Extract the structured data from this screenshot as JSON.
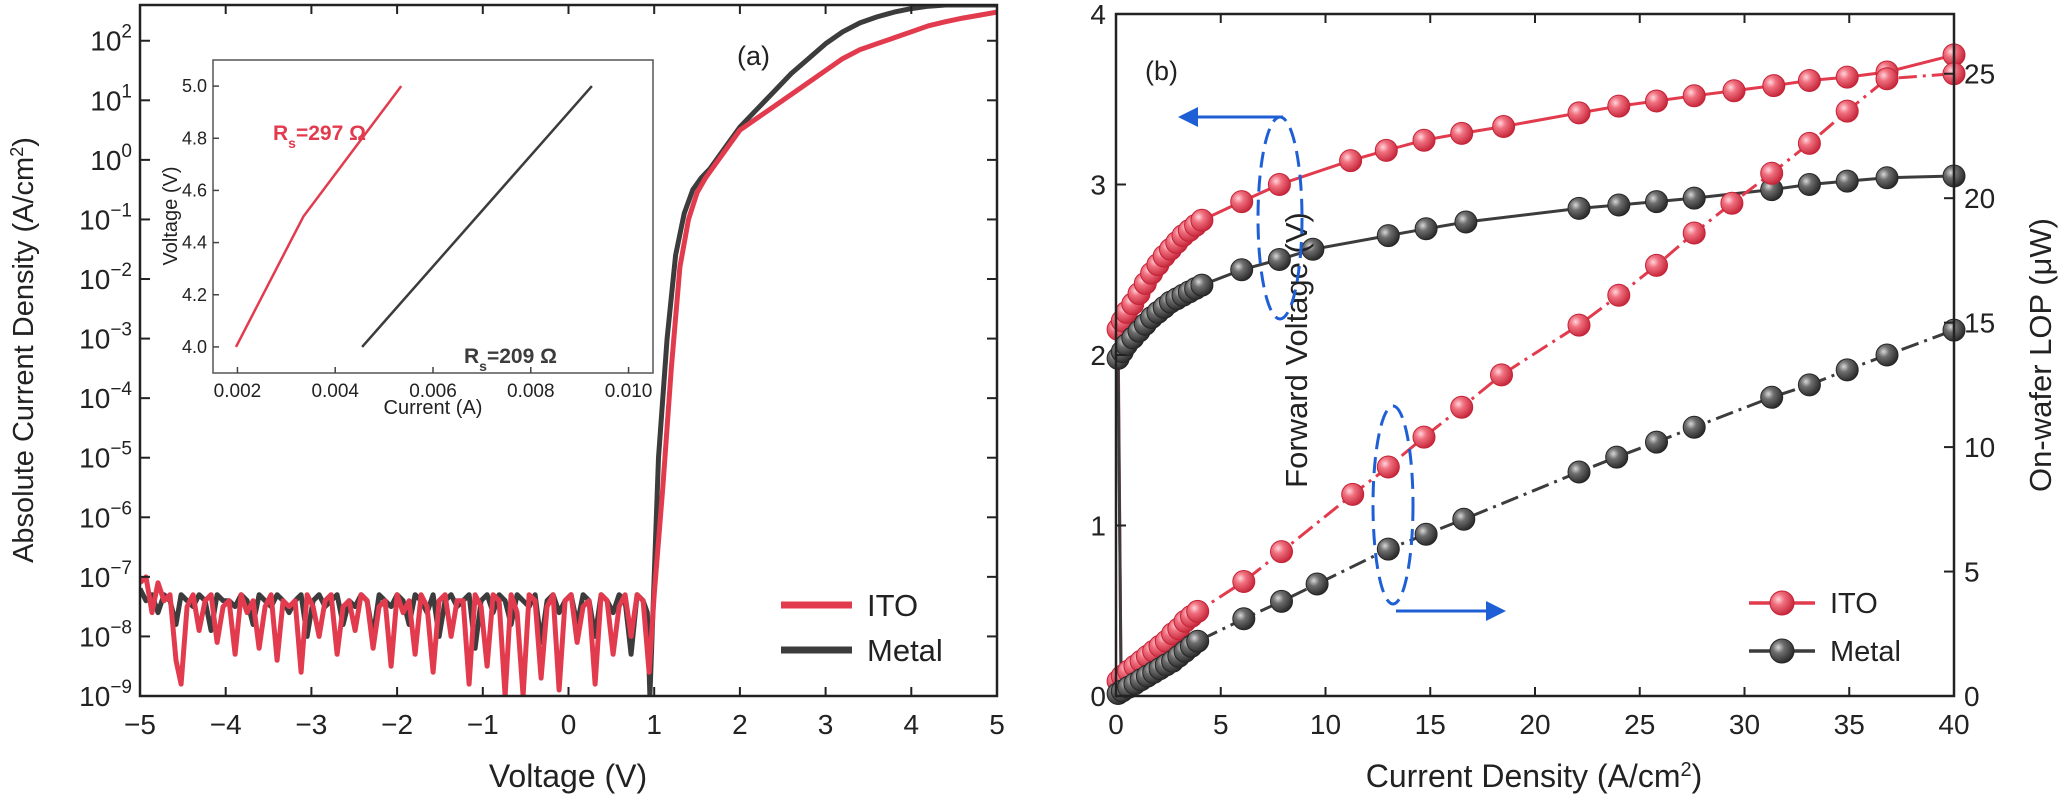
{
  "colors": {
    "ito": "#e23b4e",
    "metal": "#3c3c3c",
    "annotation": "#1f5fd6"
  },
  "chart_data": [
    {
      "panel_label": "(a)",
      "type": "line",
      "xlabel": "Voltage (V)",
      "ylabel_main": "Absolute Current Density (A/cm",
      "ylabel_sup": "2",
      "ylabel_tail": ")",
      "xlim": [
        -5,
        5
      ],
      "ylim_log10": [
        -9,
        2.6
      ],
      "y_scale": "log",
      "xticks": [
        -5,
        -4,
        -3,
        -2,
        -1,
        0,
        1,
        2,
        3,
        4,
        5
      ],
      "xtick_labels": [
        "−5",
        "−4",
        "−3",
        "−2",
        "−1",
        "0",
        "1",
        "2",
        "3",
        "4",
        "5"
      ],
      "ytick_exponents": [
        -9,
        -8,
        -7,
        -6,
        -5,
        -4,
        -3,
        -2,
        -1,
        0,
        1,
        2
      ],
      "ytick_base": "10",
      "legend_position": "bottom-right",
      "series": [
        {
          "name": "ITO",
          "color_key": "ito",
          "x": [
            -5.0,
            -4.93,
            -4.86,
            -4.79,
            -4.72,
            -4.65,
            -4.58,
            -4.52,
            -4.45,
            -4.38,
            -4.31,
            -4.24,
            -4.17,
            -4.1,
            -4.03,
            -3.96,
            -3.89,
            -3.82,
            -3.75,
            -3.68,
            -3.61,
            -3.54,
            -3.47,
            -3.4,
            -3.33,
            -3.26,
            -3.19,
            -3.12,
            -3.05,
            -2.98,
            -2.91,
            -2.84,
            -2.77,
            -2.7,
            -2.63,
            -2.56,
            -2.49,
            -2.42,
            -2.35,
            -2.28,
            -2.21,
            -2.14,
            -2.07,
            -2.0,
            -1.93,
            -1.86,
            -1.79,
            -1.72,
            -1.65,
            -1.58,
            -1.51,
            -1.44,
            -1.37,
            -1.3,
            -1.23,
            -1.16,
            -1.09,
            -1.02,
            -0.95,
            -0.88,
            -0.81,
            -0.74,
            -0.67,
            -0.6,
            -0.53,
            -0.46,
            -0.39,
            -0.32,
            -0.25,
            -0.18,
            -0.11,
            -0.04,
            0.03,
            0.1,
            0.17,
            0.24,
            0.31,
            0.38,
            0.45,
            0.52,
            0.59,
            0.66,
            0.73,
            0.8,
            0.87,
            0.94,
            1.0,
            1.1,
            1.2,
            1.3,
            1.4,
            1.5,
            1.6,
            1.7,
            1.8,
            1.9,
            2.0,
            2.2,
            2.4,
            2.6,
            2.8,
            3.0,
            3.2,
            3.4,
            3.6,
            3.8,
            4.0,
            4.2,
            4.4,
            4.6,
            4.8,
            5.0
          ],
          "log10_y": [
            -7.1,
            -7.0,
            -7.6,
            -7.1,
            -7.4,
            -7.3,
            -8.4,
            -8.8,
            -7.5,
            -7.3,
            -7.9,
            -7.4,
            -7.3,
            -8.1,
            -7.5,
            -7.4,
            -8.3,
            -7.3,
            -7.6,
            -7.4,
            -8.2,
            -7.5,
            -7.3,
            -8.4,
            -7.4,
            -7.5,
            -7.4,
            -8.6,
            -7.3,
            -7.5,
            -8.0,
            -7.4,
            -7.3,
            -8.3,
            -7.5,
            -7.4,
            -7.9,
            -7.3,
            -7.4,
            -8.2,
            -7.5,
            -7.4,
            -8.5,
            -7.3,
            -7.6,
            -7.4,
            -8.3,
            -7.3,
            -7.5,
            -8.6,
            -7.4,
            -7.3,
            -8.0,
            -7.4,
            -7.4,
            -8.8,
            -7.3,
            -7.5,
            -8.5,
            -7.3,
            -7.4,
            -9.0,
            -7.3,
            -7.6,
            -9.0,
            -7.3,
            -7.4,
            -8.7,
            -7.5,
            -7.3,
            -8.9,
            -7.4,
            -7.3,
            -8.1,
            -7.5,
            -7.4,
            -8.8,
            -7.3,
            -7.4,
            -8.3,
            -7.5,
            -7.3,
            -8.0,
            -7.3,
            -7.4,
            -8.6,
            -7.3,
            -5.5,
            -3.5,
            -1.8,
            -1.0,
            -0.55,
            -0.3,
            -0.1,
            0.1,
            0.3,
            0.5,
            0.7,
            0.9,
            1.1,
            1.3,
            1.5,
            1.7,
            1.85,
            1.95,
            2.05,
            2.15,
            2.25,
            2.32,
            2.38,
            2.43,
            2.48
          ]
        },
        {
          "name": "Metal",
          "color_key": "metal",
          "x": [
            -5.0,
            -4.93,
            -4.86,
            -4.79,
            -4.72,
            -4.65,
            -4.58,
            -4.52,
            -4.45,
            -4.38,
            -4.31,
            -4.24,
            -4.17,
            -4.1,
            -4.03,
            -3.96,
            -3.89,
            -3.82,
            -3.75,
            -3.68,
            -3.61,
            -3.54,
            -3.47,
            -3.4,
            -3.33,
            -3.26,
            -3.19,
            -3.12,
            -3.05,
            -2.98,
            -2.91,
            -2.84,
            -2.77,
            -2.7,
            -2.63,
            -2.56,
            -2.49,
            -2.42,
            -2.35,
            -2.28,
            -2.21,
            -2.14,
            -2.07,
            -2.0,
            -1.93,
            -1.86,
            -1.79,
            -1.72,
            -1.65,
            -1.58,
            -1.51,
            -1.44,
            -1.37,
            -1.3,
            -1.23,
            -1.16,
            -1.09,
            -1.02,
            -0.95,
            -0.88,
            -0.81,
            -0.74,
            -0.67,
            -0.6,
            -0.53,
            -0.46,
            -0.39,
            -0.32,
            -0.25,
            -0.18,
            -0.11,
            -0.04,
            0.03,
            0.1,
            0.17,
            0.24,
            0.31,
            0.38,
            0.45,
            0.52,
            0.59,
            0.66,
            0.73,
            0.8,
            0.87,
            0.92,
            0.95,
            1.05,
            1.15,
            1.25,
            1.35,
            1.45,
            1.55,
            1.65,
            1.75,
            1.85,
            2.0,
            2.2,
            2.4,
            2.6,
            2.8,
            3.0,
            3.2,
            3.4,
            3.6,
            3.8,
            4.0,
            4.2,
            4.4,
            4.6,
            4.8,
            5.0
          ],
          "log10_y": [
            -7.2,
            -7.4,
            -7.3,
            -7.6,
            -7.3,
            -7.4,
            -7.8,
            -7.3,
            -7.4,
            -7.5,
            -7.3,
            -7.4,
            -7.9,
            -7.3,
            -7.4,
            -7.4,
            -7.5,
            -7.3,
            -7.4,
            -7.8,
            -7.3,
            -7.4,
            -7.5,
            -7.3,
            -7.4,
            -7.6,
            -7.4,
            -7.3,
            -8.0,
            -7.4,
            -7.3,
            -7.5,
            -7.4,
            -7.3,
            -7.8,
            -7.4,
            -7.5,
            -7.3,
            -7.4,
            -8.0,
            -7.3,
            -7.4,
            -7.5,
            -7.3,
            -7.4,
            -7.8,
            -7.3,
            -7.4,
            -7.6,
            -7.3,
            -8.0,
            -7.4,
            -7.3,
            -7.5,
            -7.4,
            -7.3,
            -8.2,
            -7.4,
            -7.3,
            -7.6,
            -7.3,
            -7.4,
            -7.8,
            -7.3,
            -7.4,
            -7.5,
            -7.3,
            -8.1,
            -7.4,
            -7.3,
            -7.6,
            -7.4,
            -7.3,
            -7.8,
            -7.3,
            -7.4,
            -8.0,
            -7.3,
            -7.4,
            -7.6,
            -7.3,
            -7.4,
            -8.3,
            -7.3,
            -7.4,
            -7.6,
            -9.0,
            -5.0,
            -3.0,
            -1.6,
            -0.9,
            -0.5,
            -0.3,
            -0.15,
            0.05,
            0.25,
            0.55,
            0.85,
            1.15,
            1.45,
            1.7,
            1.95,
            2.15,
            2.3,
            2.4,
            2.48,
            2.54,
            2.58,
            2.6,
            2.6,
            2.6,
            2.6
          ]
        }
      ],
      "inset": {
        "xlabel": "Current  (A)",
        "ylabel": "Voltage (V)",
        "xlim": [
          0.0015,
          0.0105
        ],
        "ylim": [
          3.9,
          5.1
        ],
        "xticks": [
          0.002,
          0.004,
          0.006,
          0.008,
          0.01
        ],
        "xtick_labels": [
          "0.002",
          "0.004",
          "0.006",
          "0.008",
          "0.010"
        ],
        "yticks": [
          4.0,
          4.2,
          4.4,
          4.6,
          4.8,
          5.0
        ],
        "ytick_labels": [
          "4.0",
          "4.2",
          "4.4",
          "4.6",
          "4.8",
          "5.0"
        ],
        "series": [
          {
            "name": "ITO",
            "color_key": "ito",
            "x": [
              0.00197,
              0.00335,
              0.00535
            ],
            "y": [
              4.0,
              4.5,
              5.0
            ]
          },
          {
            "name": "Metal",
            "color_key": "metal",
            "x": [
              0.00455,
              0.0069,
              0.00925
            ],
            "y": [
              4.0,
              4.5,
              5.0
            ]
          }
        ],
        "annotations": [
          {
            "prefix": "R",
            "sub": "s",
            "suffix": "=297 Ω",
            "color_key": "ito"
          },
          {
            "prefix": "R",
            "sub": "s",
            "suffix": "=209 Ω",
            "color_key": "metal"
          }
        ]
      }
    },
    {
      "panel_label": "(b)",
      "type": "line",
      "xlabel_main": "Current Density (A/cm",
      "xlabel_sup": "2",
      "xlabel_tail": ")",
      "ylabel_left": "Forward Voltage (V)",
      "ylabel_right": "On-wafer LOP (μW)",
      "xlim": [
        0,
        40
      ],
      "ylim_left": [
        0,
        4
      ],
      "ylim_right": [
        0,
        27.4
      ],
      "xticks": [
        0,
        5,
        10,
        15,
        20,
        25,
        30,
        35,
        40
      ],
      "yticks_left": [
        0,
        1,
        2,
        3,
        4
      ],
      "yticks_right": [
        0,
        5,
        10,
        15,
        20,
        25
      ],
      "legend_position": "bottom-right",
      "series": [
        {
          "name": "ITO",
          "axis": "left",
          "color_key": "ito",
          "x": [
            0.1,
            0.3,
            0.5,
            0.8,
            1.1,
            1.4,
            1.7,
            2.0,
            2.3,
            2.6,
            2.9,
            3.2,
            3.5,
            3.8,
            4.1,
            6.0,
            7.8,
            11.2,
            12.9,
            14.7,
            16.5,
            18.5,
            22.1,
            24.0,
            25.8,
            27.6,
            29.5,
            31.4,
            33.1,
            34.9,
            36.8,
            40.0
          ],
          "y": [
            2.15,
            2.2,
            2.25,
            2.3,
            2.36,
            2.42,
            2.48,
            2.53,
            2.58,
            2.62,
            2.66,
            2.7,
            2.73,
            2.76,
            2.79,
            2.9,
            3.0,
            3.14,
            3.2,
            3.26,
            3.3,
            3.34,
            3.42,
            3.46,
            3.49,
            3.52,
            3.55,
            3.58,
            3.61,
            3.63,
            3.66,
            3.76
          ]
        },
        {
          "name": "Metal",
          "axis": "left",
          "color_key": "metal",
          "x": [
            0.1,
            0.3,
            0.5,
            0.8,
            1.1,
            1.4,
            1.7,
            2.0,
            2.3,
            2.6,
            2.9,
            3.2,
            3.5,
            3.8,
            4.1,
            6.0,
            7.8,
            9.4,
            13.0,
            14.8,
            16.7,
            22.1,
            24.0,
            25.8,
            27.6,
            31.3,
            33.1,
            34.9,
            36.8,
            40.0
          ],
          "y": [
            1.98,
            2.02,
            2.06,
            2.1,
            2.14,
            2.18,
            2.22,
            2.25,
            2.28,
            2.31,
            2.33,
            2.35,
            2.37,
            2.39,
            2.41,
            2.5,
            2.56,
            2.62,
            2.7,
            2.74,
            2.78,
            2.86,
            2.88,
            2.9,
            2.92,
            2.97,
            3.0,
            3.02,
            3.04,
            3.05
          ]
        },
        {
          "name": "ITO",
          "axis": "right",
          "color_key": "ito",
          "x": [
            0.1,
            0.3,
            0.6,
            0.9,
            1.2,
            1.5,
            1.8,
            2.1,
            2.4,
            2.7,
            3.0,
            3.3,
            3.6,
            3.9,
            6.1,
            7.9,
            11.3,
            13.0,
            14.7,
            16.5,
            18.4,
            22.1,
            24.0,
            25.8,
            27.6,
            29.4,
            31.3,
            33.1,
            34.9,
            36.8,
            40.0
          ],
          "y": [
            0.6,
            0.8,
            1.0,
            1.2,
            1.4,
            1.6,
            1.8,
            2.0,
            2.2,
            2.5,
            2.7,
            3.0,
            3.2,
            3.4,
            4.6,
            5.8,
            8.1,
            9.2,
            10.4,
            11.6,
            12.9,
            14.9,
            16.1,
            17.3,
            18.6,
            19.8,
            21.0,
            22.2,
            23.5,
            24.8,
            25.0
          ]
        },
        {
          "name": "Metal",
          "axis": "right",
          "color_key": "metal",
          "x": [
            0.1,
            0.3,
            0.6,
            0.9,
            1.2,
            1.5,
            1.8,
            2.1,
            2.4,
            2.7,
            3.0,
            3.3,
            3.6,
            3.9,
            6.1,
            7.9,
            9.6,
            13.0,
            14.8,
            16.6,
            22.1,
            23.9,
            25.8,
            27.6,
            31.3,
            33.1,
            34.9,
            36.8,
            40.0
          ],
          "y": [
            0.1,
            0.2,
            0.35,
            0.5,
            0.65,
            0.8,
            0.95,
            1.1,
            1.25,
            1.4,
            1.6,
            1.8,
            2.0,
            2.2,
            3.1,
            3.8,
            4.5,
            5.9,
            6.5,
            7.1,
            9.0,
            9.6,
            10.2,
            10.8,
            12.0,
            12.5,
            13.1,
            13.7,
            14.7
          ]
        }
      ]
    }
  ]
}
